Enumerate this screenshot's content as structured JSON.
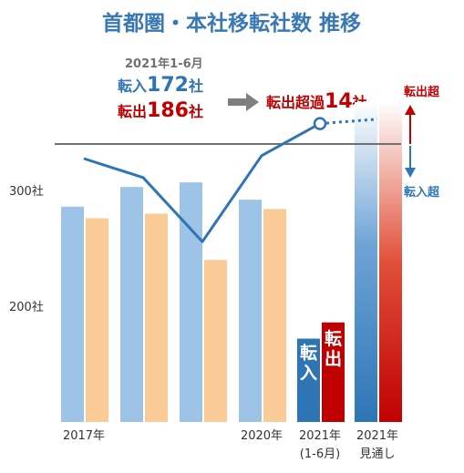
{
  "title": "首都圏・本社移転社数 推移",
  "summary": {
    "period": "2021年1-6月",
    "in_prefix": "転入",
    "in_value": "172",
    "in_suffix": "社",
    "out_prefix": "転出",
    "out_value": "186",
    "out_suffix": "社",
    "excess_prefix": "転出超過",
    "excess_value": "14",
    "excess_suffix": "社"
  },
  "legend": {
    "out_excess": "転出超",
    "in_excess": "転入超"
  },
  "colors": {
    "title": "#3a78b5",
    "in_bar": "#9dc3e6",
    "out_bar": "#fbcb97",
    "in_bar_2021": "#2e75b6",
    "out_bar_2021": "#c00000",
    "line": "#2e75b6",
    "baseline": "#707070"
  },
  "chart_data": {
    "type": "bar",
    "y_ticks": [
      {
        "value": 300,
        "label": "300社"
      },
      {
        "value": 200,
        "label": "200社"
      }
    ],
    "ylim": [
      100,
      370
    ],
    "x_labels": [
      {
        "index": 0,
        "lines": [
          "2017年"
        ]
      },
      {
        "index": 3,
        "lines": [
          "2020年"
        ]
      },
      {
        "index": 4,
        "lines": [
          "2021年",
          "(1-6月)"
        ]
      },
      {
        "index": 5,
        "lines": [
          "2021年",
          "見通し"
        ]
      }
    ],
    "years": [
      {
        "index": 0,
        "in": 286,
        "out": 276
      },
      {
        "index": 1,
        "in": 303,
        "out": 280
      },
      {
        "index": 2,
        "in": 307,
        "out": 240
      },
      {
        "index": 3,
        "in": 292,
        "out": 284
      }
    ],
    "half_year": {
      "index": 4,
      "in": 172,
      "out": 186,
      "in_label": "転入",
      "out_label": "転出"
    },
    "net_line": [
      {
        "index": 0,
        "value": -10
      },
      {
        "index": 1,
        "value": -23
      },
      {
        "index": 2,
        "value": -67
      },
      {
        "index": 3,
        "value": -8
      },
      {
        "index": 4,
        "value": 14
      }
    ],
    "net_line_projected": [
      {
        "index": 4,
        "value": 14
      },
      {
        "index": 5,
        "value": 17
      }
    ]
  }
}
